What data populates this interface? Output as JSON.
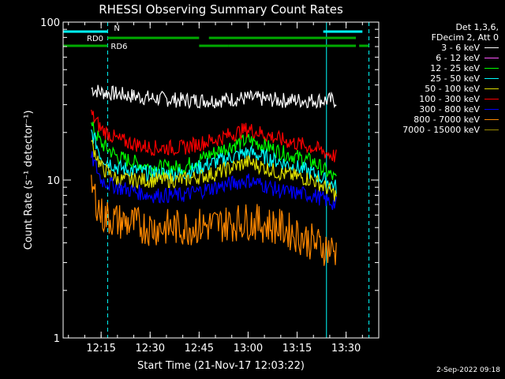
{
  "chart_data": {
    "type": "line",
    "title": "RHESSI Observing Summary Count Rates",
    "xlabel": "Start Time (21-Nov-17 12:03:22)",
    "ylabel": "Count Rate (s⁻¹ detector⁻¹)",
    "yscale": "log",
    "ylim": [
      1,
      100
    ],
    "xlim": [
      "12:03:22",
      "13:40:00"
    ],
    "x_ticks": [
      "12:15",
      "12:30",
      "12:45",
      "13:00",
      "13:15",
      "13:30"
    ],
    "y_ticks": [
      "1",
      "10",
      "100"
    ],
    "legend_header": [
      "Det 1,3,6,",
      "FDecim 2, Att 0"
    ],
    "legend_placement": "right",
    "series": [
      {
        "name": "3 - 6 keV",
        "color": "#ffffff",
        "x": [
          "12:12",
          "12:15",
          "12:20",
          "12:30",
          "12:40",
          "12:50",
          "13:00",
          "13:10",
          "13:20",
          "13:27"
        ],
        "values": [
          38,
          36,
          35,
          33,
          32,
          32,
          33,
          32,
          32,
          32
        ]
      },
      {
        "name": "6 - 12 keV",
        "color": "#ff55ff",
        "x": [],
        "values": []
      },
      {
        "name": "12 - 25 keV",
        "color": "#00ff00",
        "x": [
          "12:12",
          "12:15",
          "12:20",
          "12:30",
          "12:40",
          "12:50",
          "13:00",
          "13:10",
          "13:20",
          "13:27"
        ],
        "values": [
          22,
          17,
          14,
          12,
          12,
          15,
          18,
          15,
          13,
          10
        ]
      },
      {
        "name": "25 - 50 keV",
        "color": "#00ffff",
        "x": [
          "12:12",
          "12:15",
          "12:20",
          "12:30",
          "12:40",
          "12:50",
          "13:00",
          "13:10",
          "13:20",
          "13:27"
        ],
        "values": [
          20,
          14,
          12,
          11,
          11,
          13,
          15,
          13,
          11,
          9
        ]
      },
      {
        "name": "50 - 100 keV",
        "color": "#dddd00",
        "x": [
          "12:12",
          "12:15",
          "12:20",
          "12:30",
          "12:40",
          "12:50",
          "13:00",
          "13:10",
          "13:20",
          "13:27"
        ],
        "values": [
          17,
          12,
          10,
          10,
          10,
          11,
          13,
          11,
          10,
          8
        ]
      },
      {
        "name": "100 - 300 keV",
        "color": "#ff0000",
        "x": [
          "12:12",
          "12:15",
          "12:20",
          "12:30",
          "12:40",
          "12:50",
          "13:00",
          "13:10",
          "13:20",
          "13:27"
        ],
        "values": [
          26,
          21,
          18,
          16,
          16,
          18,
          21,
          18,
          16,
          14
        ]
      },
      {
        "name": "300 - 800 keV",
        "color": "#0000ff",
        "x": [
          "12:12",
          "12:15",
          "12:20",
          "12:30",
          "12:40",
          "12:50",
          "13:00",
          "13:10",
          "13:20",
          "13:27"
        ],
        "values": [
          14,
          10,
          9,
          8,
          8,
          9,
          10,
          8.5,
          8,
          7
        ]
      },
      {
        "name": "800 - 7000 keV",
        "color": "#ff8800",
        "x": [
          "12:12",
          "12:15",
          "12:20",
          "12:30",
          "12:40",
          "12:50",
          "13:00",
          "13:10",
          "13:20",
          "13:27"
        ],
        "values": [
          9,
          6,
          5.5,
          5,
          5,
          5.2,
          5.5,
          5,
          4,
          3.5
        ]
      },
      {
        "name": "7000 - 15000 keV",
        "color": "#998800",
        "x": [],
        "values": []
      }
    ],
    "status_bars": [
      {
        "label": "N",
        "color": "#00ffff",
        "segments": [
          [
            "12:03:22",
            "12:17"
          ],
          [
            "13:23",
            "13:35"
          ]
        ]
      },
      {
        "label": "RD0",
        "color": "#00aa00",
        "segments": [
          [
            "12:17",
            "12:45"
          ],
          [
            "12:48",
            "13:33"
          ]
        ]
      },
      {
        "label": "RD6",
        "color": "#00aa00",
        "segments": [
          [
            "12:03:22",
            "12:17"
          ],
          [
            "12:45",
            "12:54"
          ],
          [
            "12:54",
            "13:33"
          ],
          [
            "13:34",
            "13:37"
          ]
        ]
      }
    ],
    "vertical_markers": [
      {
        "time": "12:03:22",
        "color": "#00ffff",
        "style": "solid"
      },
      {
        "time": "12:17",
        "color": "#00ffff",
        "style": "dashed"
      },
      {
        "time": "13:24",
        "color": "#00ffff",
        "style": "solid"
      },
      {
        "time": "13:37",
        "color": "#00ffff",
        "style": "dashed"
      }
    ],
    "grid": false
  },
  "footer": {
    "timestamp": "2-Sep-2022 09:18"
  }
}
